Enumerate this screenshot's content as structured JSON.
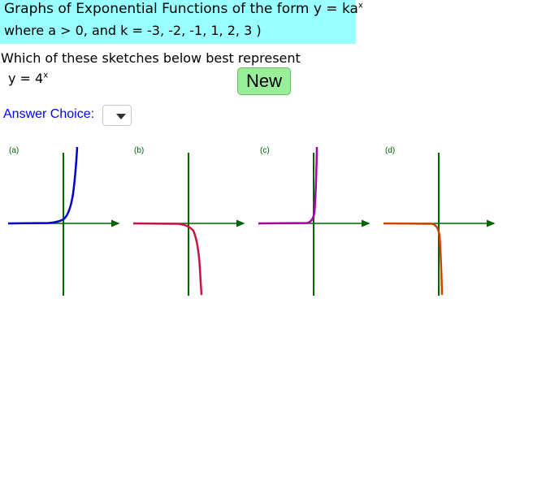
{
  "header": {
    "line1": "Graphs of Exponential Functions of the form  y = ka",
    "line1_exp": "x",
    "line2": "where a  >  0,    and k  =  -3,  -2,  -1,  1,  2,  3 )",
    "background_color": "#99ffff"
  },
  "question": {
    "prompt": "Which of these sketches below best represent",
    "equation": "y = 4",
    "equation_exp": "x"
  },
  "new_button": {
    "label": "New",
    "color": "#99ee99"
  },
  "answer": {
    "label": "Answer Choice:",
    "selected": "",
    "label_color": "#0000ff"
  },
  "graphs": [
    {
      "label": "(a)",
      "curve_color": "#0000cc"
    },
    {
      "label": "(b)",
      "curve_color": "#cc1144"
    },
    {
      "label": "(c)",
      "curve_color": "#aa00aa"
    },
    {
      "label": "(d)",
      "curve_color": "#cc4400"
    }
  ],
  "axis_color": "#006400"
}
